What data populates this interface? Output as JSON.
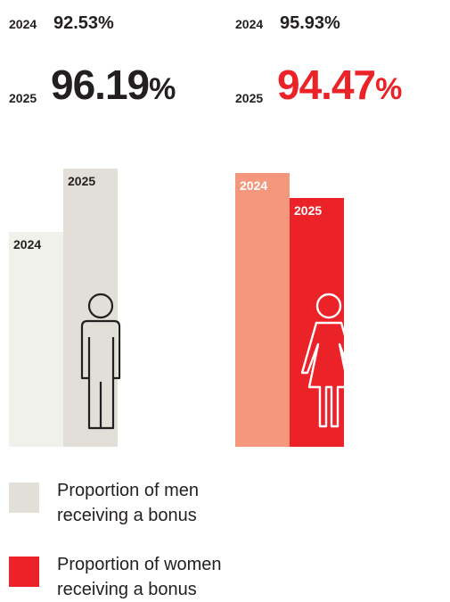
{
  "chart_data": {
    "type": "bar",
    "groups": [
      {
        "name": "men",
        "label_2024": "2024",
        "value_2024_text": "92.53%",
        "label_2025": "2025",
        "value_2025_number": "96.19",
        "value_2025_pct": "%",
        "bars": [
          {
            "year": "2024",
            "value": 92.53,
            "color": "#f1f1ec"
          },
          {
            "year": "2025",
            "value": 96.19,
            "color": "#e2dfd9"
          }
        ],
        "icon": "man-icon"
      },
      {
        "name": "women",
        "label_2024": "2024",
        "value_2024_text": "95.93%",
        "label_2025": "2025",
        "value_2025_number": "94.47",
        "value_2025_pct": "%",
        "bars": [
          {
            "year": "2024",
            "value": 95.93,
            "color": "#f4977c"
          },
          {
            "year": "2025",
            "value": 94.47,
            "color": "#ec2229"
          }
        ],
        "icon": "woman-icon"
      }
    ],
    "legend": [
      {
        "label": "Proportion of men receiving a bonus",
        "color": "#e2dfd9"
      },
      {
        "label": "Proportion of women receiving a bonus",
        "color": "#ec2229"
      }
    ]
  },
  "colors": {
    "accent_red": "#ec2229",
    "text": "#231f20"
  },
  "legend_lines": {
    "men_line1": "Proportion of men",
    "men_line2": "receiving a bonus",
    "women_line1": "Proportion of women",
    "women_line2": "receiving a bonus"
  }
}
